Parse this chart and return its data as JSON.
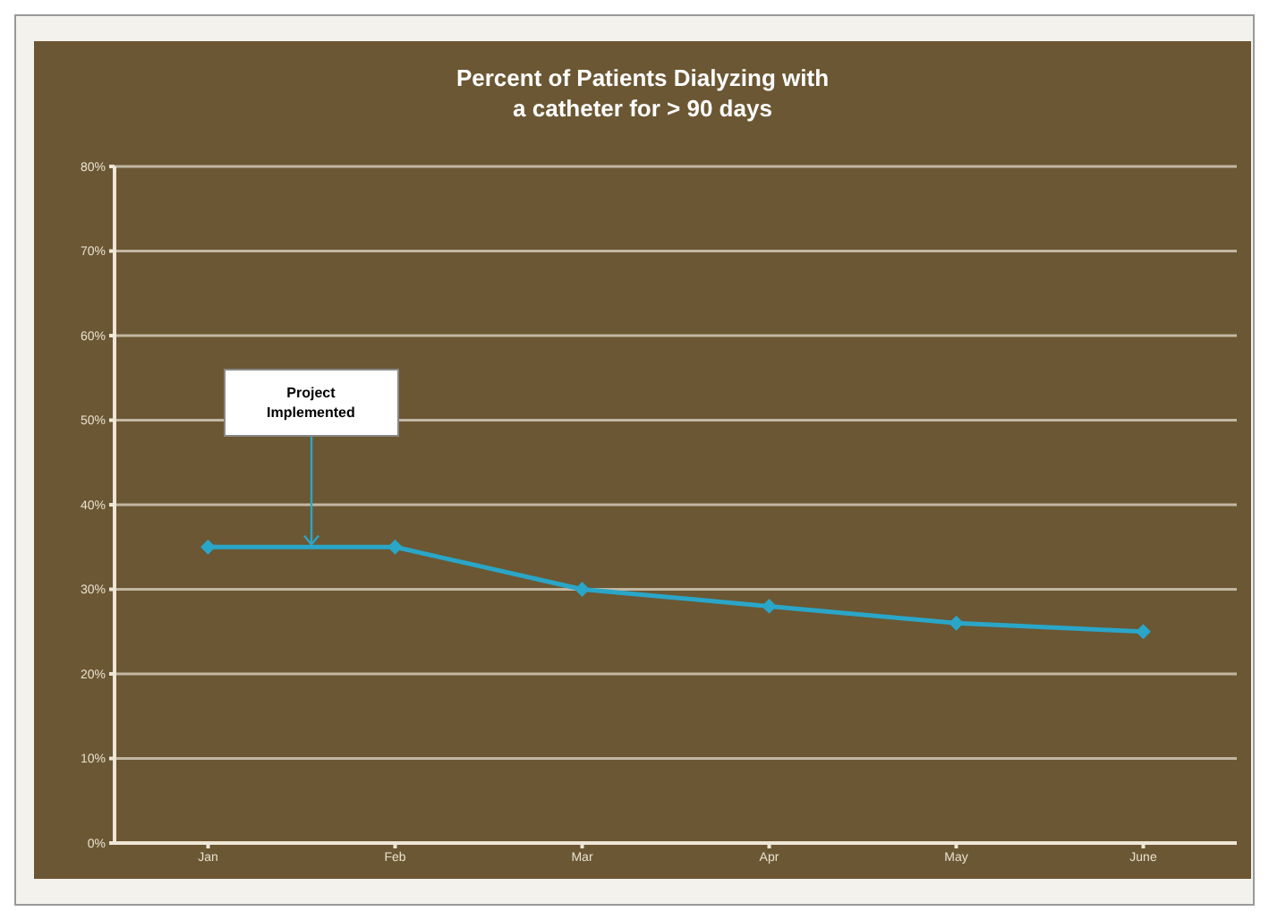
{
  "chart_data": {
    "type": "line",
    "title": "Percent of Patients Dialyzing with\na catheter for > 90 days",
    "categories": [
      "Jan",
      "Feb",
      "Mar",
      "Apr",
      "May",
      "June"
    ],
    "series": [
      {
        "color": "#2aa6c8",
        "values": [
          35,
          35,
          30,
          28,
          26,
          25
        ]
      }
    ],
    "ylim": [
      0,
      80
    ],
    "yticks": [
      {
        "value": 0,
        "label": "0%"
      },
      {
        "value": 10,
        "label": "10%"
      },
      {
        "value": 20,
        "label": "20%"
      },
      {
        "value": 30,
        "label": "30%"
      },
      {
        "value": 40,
        "label": "40%"
      },
      {
        "value": 50,
        "label": "50%"
      },
      {
        "value": 60,
        "label": "60%"
      },
      {
        "value": 70,
        "label": "70%"
      },
      {
        "value": 80,
        "label": "80%"
      }
    ],
    "grid": "y",
    "marker": "diamond",
    "line_style": "solid",
    "annotations": [
      {
        "text": "Project Implemented",
        "y": 35
      }
    ]
  }
}
